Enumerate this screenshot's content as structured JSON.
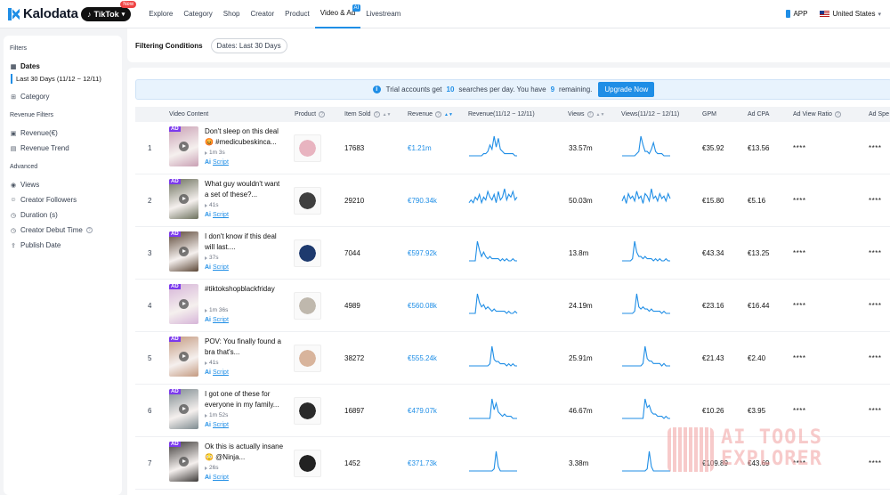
{
  "brand": {
    "name": "Kalodata",
    "platform": "TikTok",
    "new_badge": "New"
  },
  "nav": [
    {
      "label": "Explore",
      "active": false
    },
    {
      "label": "Category",
      "active": false
    },
    {
      "label": "Shop",
      "active": false
    },
    {
      "label": "Creator",
      "active": false
    },
    {
      "label": "Product",
      "active": false
    },
    {
      "label": "Video & Ad",
      "active": true,
      "badge": "AI"
    },
    {
      "label": "Livestream",
      "active": false
    }
  ],
  "top_right": {
    "app_label": "APP",
    "country": "United States"
  },
  "sidebar": {
    "filters_title": "Filters",
    "dates_label": "Dates",
    "dates_value": "Last 30 Days (11/12 ~ 12/11)",
    "category_label": "Category",
    "revenue_filters_title": "Revenue Filters",
    "revenue_label": "Revenue(€)",
    "revenue_trend_label": "Revenue Trend",
    "advanced_title": "Advanced",
    "views_label": "Views",
    "creator_followers_label": "Creator Followers",
    "duration_label": "Duration (s)",
    "creator_debut_label": "Creator Debut Time",
    "publish_date_label": "Publish Date"
  },
  "filter_bar": {
    "title": "Filtering Conditions",
    "chip": "Dates: Last 30 Days"
  },
  "notice": {
    "part1": "Trial accounts get",
    "searches": "10",
    "part2": "searches per day. You have",
    "remaining": "9",
    "part3": "remaining.",
    "button": "Upgrade Now"
  },
  "columns": {
    "video": "Video Content",
    "product": "Product",
    "item_sold": "Item Sold",
    "revenue": "Revenue",
    "revenue_trend": "Revenue(11/12 ~ 12/11)",
    "views": "Views",
    "views_trend": "Views(11/12 ~ 12/11)",
    "gpm": "GPM",
    "ad_cpa": "Ad CPA",
    "ad_view_ratio": "Ad View Ratio",
    "ad_spend": "Ad Spe"
  },
  "colors": {
    "accent": "#1f8ee6",
    "ad_tag": "#7c3aed"
  },
  "rows": [
    {
      "rank": "1",
      "title": "Don't sleep on this deal 😡 #medicubeskinca...",
      "duration": "1m 3s",
      "script": "Script",
      "item_sold": "17683",
      "revenue": "€1.21m",
      "views": "33.57m",
      "gpm": "€35.92",
      "ad_cpa": "€13.56",
      "ad_view_ratio": "****",
      "ad_spend": "****",
      "thumb_color": "#c9a0b4",
      "product_color": "#e8b4c0",
      "rev_trend": [
        0,
        0,
        0,
        0,
        0,
        0,
        0,
        1,
        1,
        2,
        5,
        3,
        9,
        4,
        8,
        3,
        2,
        1,
        1,
        1,
        1,
        1,
        0,
        0
      ],
      "views_trend": [
        0,
        0,
        0,
        0,
        0,
        0,
        0,
        1,
        2,
        9,
        5,
        2,
        2,
        1,
        3,
        6,
        2,
        1,
        1,
        1,
        0,
        0,
        0,
        0
      ]
    },
    {
      "rank": "2",
      "title": "What guy wouldn't want a set of these?...",
      "duration": "41s",
      "script": "Script",
      "item_sold": "29210",
      "revenue": "€790.34k",
      "views": "50.03m",
      "gpm": "€15.80",
      "ad_cpa": "€5.16",
      "ad_view_ratio": "****",
      "ad_spend": "****",
      "thumb_color": "#6b705c",
      "product_color": "#3f3f3f",
      "rev_trend": [
        2,
        3,
        2,
        4,
        3,
        5,
        2,
        4,
        3,
        6,
        4,
        3,
        5,
        2,
        6,
        3,
        4,
        7,
        3,
        5,
        4,
        6,
        3,
        4
      ],
      "views_trend": [
        3,
        5,
        2,
        6,
        4,
        5,
        3,
        7,
        4,
        5,
        2,
        6,
        5,
        3,
        8,
        4,
        5,
        3,
        6,
        4,
        5,
        3,
        6,
        4
      ]
    },
    {
      "rank": "3",
      "title": "I don't know if this deal will last....",
      "duration": "37s",
      "script": "Script",
      "item_sold": "7044",
      "revenue": "€597.92k",
      "views": "13.8m",
      "gpm": "€43.34",
      "ad_cpa": "€13.25",
      "ad_view_ratio": "****",
      "ad_spend": "****",
      "thumb_color": "#5b4636",
      "product_color": "#1e3a6e",
      "rev_trend": [
        0,
        0,
        0,
        0,
        9,
        5,
        2,
        4,
        2,
        1,
        2,
        1,
        1,
        1,
        1,
        0,
        1,
        0,
        1,
        0,
        0,
        1,
        0,
        0
      ],
      "views_trend": [
        0,
        0,
        0,
        0,
        0,
        1,
        9,
        4,
        2,
        2,
        1,
        2,
        1,
        1,
        1,
        0,
        1,
        0,
        1,
        0,
        0,
        1,
        0,
        0
      ]
    },
    {
      "rank": "4",
      "title": "#tiktokshopblackfriday",
      "duration": "1m 36s",
      "script": "Script",
      "item_sold": "4989",
      "revenue": "€560.08k",
      "views": "24.19m",
      "gpm": "€23.16",
      "ad_cpa": "€16.44",
      "ad_view_ratio": "****",
      "ad_spend": "****",
      "thumb_color": "#d6b4d8",
      "product_color": "#bfb8ad",
      "rev_trend": [
        0,
        0,
        0,
        0,
        9,
        5,
        3,
        4,
        2,
        3,
        2,
        1,
        2,
        1,
        1,
        1,
        1,
        1,
        0,
        1,
        0,
        0,
        1,
        0
      ],
      "views_trend": [
        0,
        0,
        0,
        0,
        0,
        0,
        1,
        9,
        3,
        2,
        3,
        2,
        2,
        1,
        2,
        1,
        1,
        1,
        1,
        0,
        1,
        0,
        0,
        0
      ]
    },
    {
      "rank": "5",
      "title": "POV: You finally found a bra that's...",
      "duration": "41s",
      "script": "Script",
      "item_sold": "38272",
      "revenue": "€555.24k",
      "views": "25.91m",
      "gpm": "€21.43",
      "ad_cpa": "€2.40",
      "ad_view_ratio": "****",
      "ad_spend": "****",
      "thumb_color": "#c49a80",
      "product_color": "#d8b49c",
      "rev_trend": [
        0,
        0,
        0,
        0,
        0,
        0,
        0,
        0,
        0,
        0,
        1,
        9,
        3,
        2,
        2,
        1,
        1,
        1,
        0,
        1,
        0,
        1,
        0,
        0
      ],
      "views_trend": [
        0,
        0,
        0,
        0,
        0,
        0,
        0,
        0,
        0,
        0,
        1,
        8,
        3,
        2,
        2,
        1,
        1,
        1,
        1,
        0,
        1,
        0,
        0,
        0
      ]
    },
    {
      "rank": "6",
      "title": "I got one of these for everyone in my family...",
      "duration": "1m 52s",
      "script": "Script",
      "item_sold": "16897",
      "revenue": "€479.07k",
      "views": "46.67m",
      "gpm": "€10.26",
      "ad_cpa": "€3.95",
      "ad_view_ratio": "****",
      "ad_spend": "****",
      "thumb_color": "#7d8a8f",
      "product_color": "#2a2a2a",
      "rev_trend": [
        0,
        0,
        0,
        0,
        0,
        0,
        0,
        0,
        0,
        0,
        0,
        9,
        4,
        7,
        3,
        2,
        1,
        2,
        1,
        1,
        1,
        0,
        0,
        0
      ],
      "views_trend": [
        0,
        0,
        0,
        0,
        0,
        0,
        0,
        0,
        0,
        0,
        0,
        9,
        5,
        6,
        3,
        2,
        2,
        1,
        1,
        1,
        0,
        1,
        0,
        0
      ]
    },
    {
      "rank": "7",
      "title": "Ok this is actually insane 😳 @Ninja...",
      "duration": "26s",
      "script": "Script",
      "item_sold": "1452",
      "revenue": "€371.73k",
      "views": "3.38m",
      "gpm": "€109.89",
      "ad_cpa": "€43.69",
      "ad_view_ratio": "****",
      "ad_spend": "****",
      "thumb_color": "#3d3a38",
      "product_color": "#222222",
      "rev_trend": [
        0,
        0,
        0,
        0,
        0,
        0,
        0,
        0,
        0,
        0,
        0,
        0,
        1,
        9,
        2,
        0,
        0,
        0,
        0,
        0,
        0,
        0,
        0,
        0
      ],
      "views_trend": [
        0,
        0,
        0,
        0,
        0,
        0,
        0,
        0,
        0,
        0,
        0,
        0,
        1,
        9,
        2,
        0,
        0,
        0,
        0,
        0,
        0,
        0,
        0,
        0
      ]
    }
  ],
  "watermark": {
    "line1": "AI TOOLS",
    "line2": "EXPLORER"
  }
}
